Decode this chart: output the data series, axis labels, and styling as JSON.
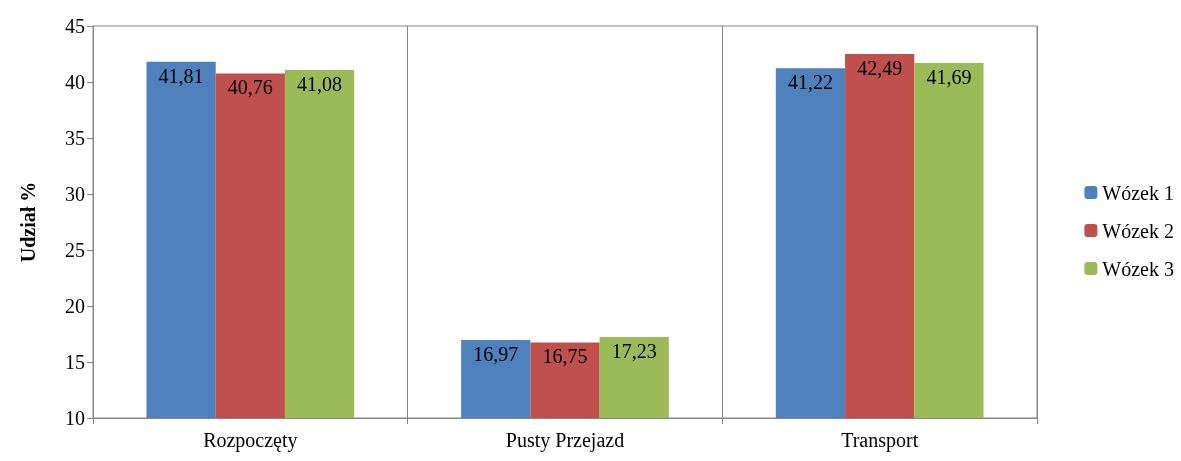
{
  "chart_data": {
    "type": "bar",
    "ylabel": "Udział %",
    "categories": [
      "Rozpoczęty",
      "Pusty Przejazd",
      "Transport"
    ],
    "series": [
      {
        "name": "Wózek 1",
        "color": "#4f81bd",
        "values": [
          41.81,
          16.97,
          41.22
        ],
        "value_labels": [
          "41,81",
          "16,97",
          "41,22"
        ]
      },
      {
        "name": "Wózek 2",
        "color": "#c0504d",
        "values": [
          40.76,
          16.75,
          42.49
        ],
        "value_labels": [
          "40,76",
          "16,75",
          "42,49"
        ]
      },
      {
        "name": "Wózek 3",
        "color": "#9bbb59",
        "values": [
          41.08,
          17.23,
          41.69
        ],
        "value_labels": [
          "41,08",
          "17,23",
          "41,69"
        ]
      }
    ],
    "ylim": [
      10,
      45
    ],
    "yticks": [
      10,
      15,
      20,
      25,
      30,
      35,
      40,
      45
    ],
    "grid": "x",
    "legend": "right"
  }
}
